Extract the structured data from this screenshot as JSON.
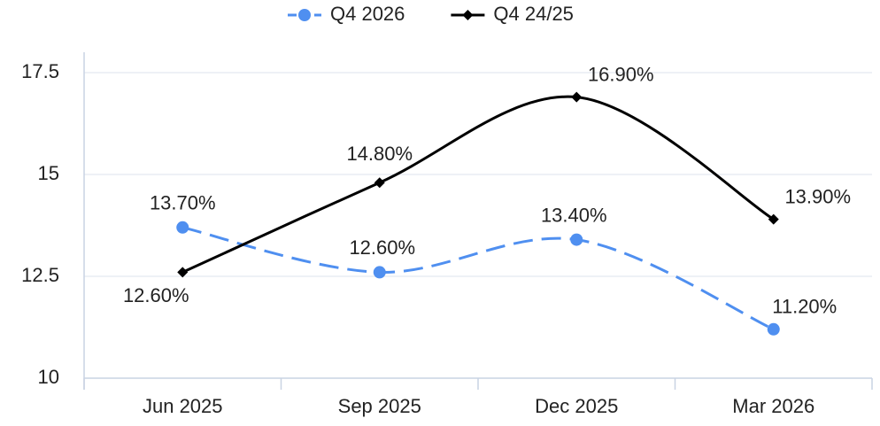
{
  "chart_data": {
    "type": "line",
    "categories": [
      "Jun 2025",
      "Sep 2025",
      "Dec 2025",
      "Mar 2026"
    ],
    "series": [
      {
        "name": "Q4 2026",
        "color": "#4f8ff0",
        "values": [
          13.7,
          12.6,
          13.4,
          11.2
        ],
        "value_labels": [
          "13.70%",
          "12.60%",
          "13.40%",
          "11.20%"
        ],
        "dashed": true,
        "marker": "circle"
      },
      {
        "name": "Q4 24/25",
        "color": "#000000",
        "values": [
          12.6,
          14.8,
          16.9,
          13.9
        ],
        "value_labels": [
          "12.60%",
          "14.80%",
          "16.90%",
          "13.90%"
        ],
        "dashed": false,
        "marker": "diamond"
      }
    ],
    "ylim": [
      10,
      18
    ],
    "yticks": [
      10,
      12.5,
      15,
      17.5
    ],
    "grid": true,
    "legend": "top"
  }
}
